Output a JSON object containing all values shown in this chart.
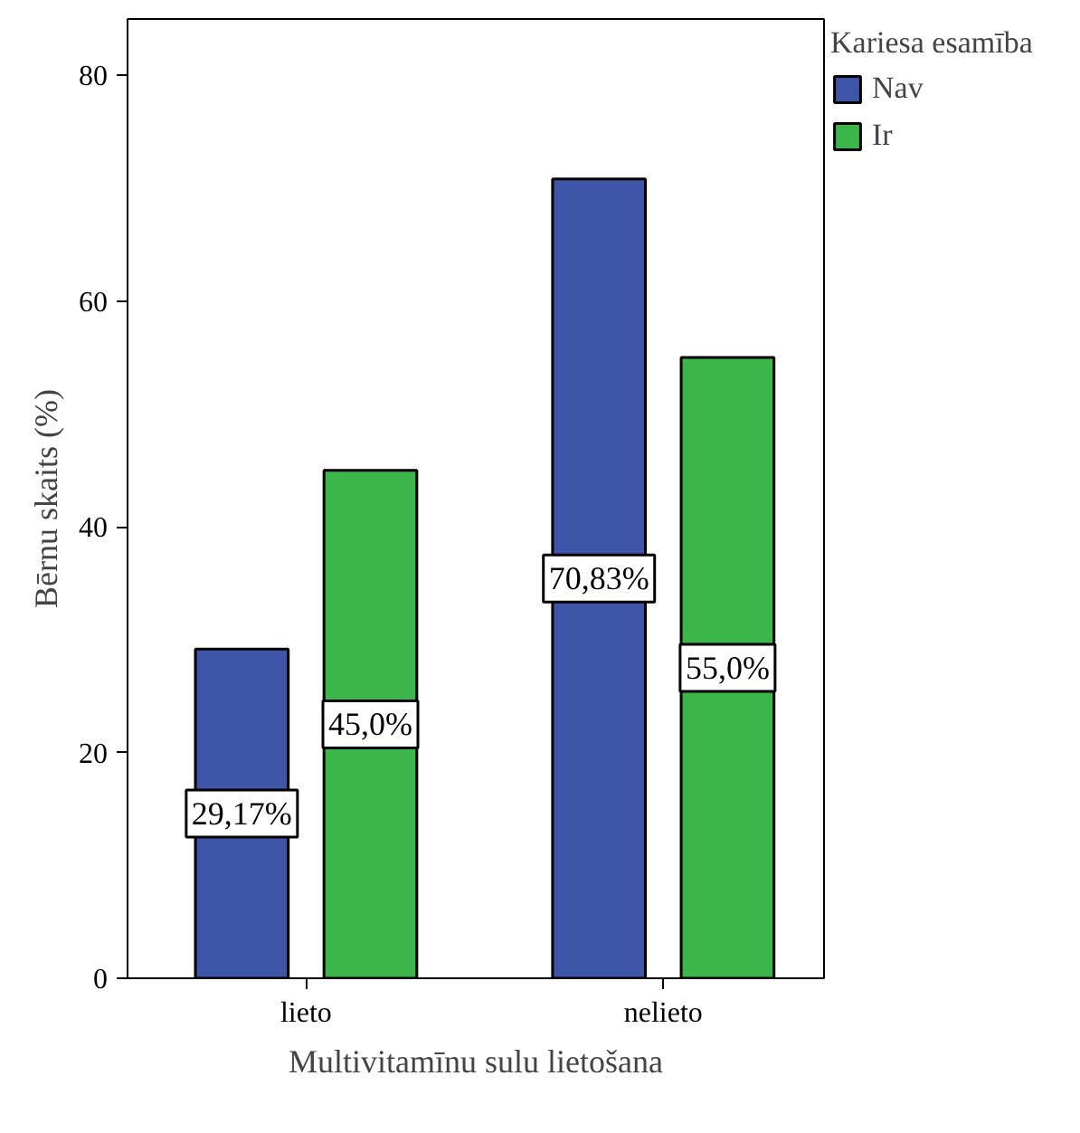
{
  "chart_data": {
    "type": "bar",
    "xlabel": "Multivitamīnu sulu lietošana",
    "ylabel": "Bērnu skaits (%)",
    "legend_title": "Kariesa esamība",
    "categories": [
      "lieto",
      "nelieto"
    ],
    "series": [
      {
        "name": "Nav",
        "color": "#3f55a8",
        "values": [
          29.17,
          70.83
        ],
        "value_labels": [
          "29,17%",
          "70,83%"
        ]
      },
      {
        "name": "Ir",
        "color": "#3cb54a",
        "values": [
          45.0,
          55.0
        ],
        "value_labels": [
          "45,0%",
          "55,0%"
        ]
      }
    ],
    "ylim": [
      0,
      85
    ],
    "yticks": [
      0,
      20,
      40,
      60,
      80
    ],
    "grid": false,
    "legend": "right"
  }
}
